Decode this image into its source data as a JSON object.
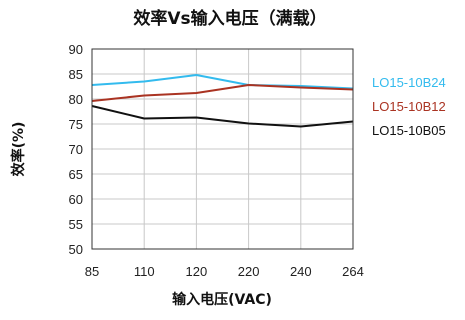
{
  "chart_data": {
    "type": "line",
    "title": "效率Vs输入电压（满载）",
    "xlabel": "输入电压(VAC)",
    "ylabel": "效率(%)",
    "categories": [
      "85",
      "110",
      "120",
      "220",
      "240",
      "264"
    ],
    "ylim": [
      50,
      90
    ],
    "yticks": [
      90,
      85,
      80,
      75,
      70,
      65,
      60,
      55,
      50
    ],
    "grid": true,
    "legend_position": "right",
    "series": [
      {
        "name": "LO15-10B24",
        "color": "#33bbee",
        "values": [
          82.8,
          83.5,
          84.8,
          82.8,
          82.6,
          82.1
        ]
      },
      {
        "name": "LO15-10B12",
        "color": "#aa3322",
        "values": [
          79.6,
          80.7,
          81.2,
          82.8,
          82.3,
          81.9
        ]
      },
      {
        "name": "LO15-10B05",
        "color": "#111111",
        "values": [
          78.6,
          76.1,
          76.3,
          75.1,
          74.5,
          75.5
        ]
      }
    ]
  }
}
